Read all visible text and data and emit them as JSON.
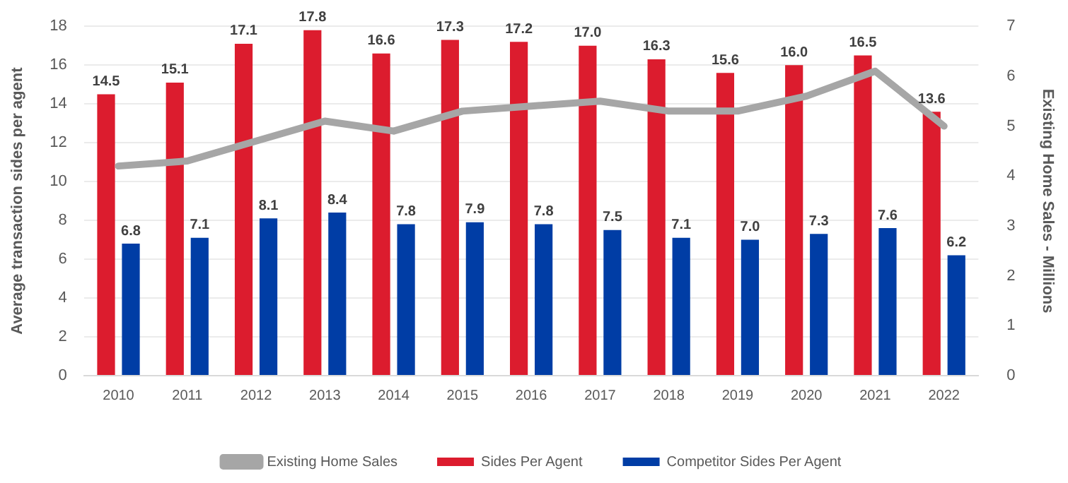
{
  "chart_data": {
    "type": "bar",
    "ylabel": "Average transaction sides per agent",
    "y2label": "Existing Home Sales - Millions",
    "categories": [
      "2010",
      "2011",
      "2012",
      "2013",
      "2014",
      "2015",
      "2016",
      "2017",
      "2018",
      "2019",
      "2020",
      "2021",
      "2022"
    ],
    "series": [
      {
        "name": "Sides Per Agent",
        "color": "#dc1c2e",
        "values": [
          14.5,
          15.1,
          17.1,
          17.8,
          16.6,
          17.3,
          17.2,
          17.0,
          16.3,
          15.6,
          16.0,
          16.5,
          13.6
        ],
        "value_labels": [
          "14.5",
          "15.1",
          "17.1",
          "17.8",
          "16.6",
          "17.3",
          "17.2",
          "17.0",
          "16.3",
          "15.6",
          "16.0",
          "16.5",
          "13.6"
        ]
      },
      {
        "name": "Competitor Sides Per Agent",
        "color": "#003da5",
        "values": [
          6.8,
          7.1,
          8.1,
          8.4,
          7.8,
          7.9,
          7.8,
          7.5,
          7.1,
          7.0,
          7.3,
          7.6,
          6.2
        ],
        "value_labels": [
          "6.8",
          "7.1",
          "8.1",
          "8.4",
          "7.8",
          "7.9",
          "7.8",
          "7.5",
          "7.1",
          "7.0",
          "7.3",
          "7.6",
          "6.2"
        ]
      },
      {
        "name": "Existing Home Sales",
        "type": "line",
        "axis": "y2",
        "color": "#a6a6a6",
        "values": [
          4.2,
          4.3,
          4.7,
          5.1,
          4.9,
          5.3,
          5.4,
          5.5,
          5.3,
          5.3,
          5.6,
          6.1,
          5.0
        ]
      }
    ],
    "ylim": [
      0,
      18
    ],
    "yticks": [
      0,
      2,
      4,
      6,
      8,
      10,
      12,
      14,
      16,
      18
    ],
    "y2lim": [
      0,
      7
    ],
    "y2ticks": [
      0,
      1,
      2,
      3,
      4,
      5,
      6,
      7
    ],
    "grid": "y",
    "legend": "bottom",
    "marker": "none"
  }
}
